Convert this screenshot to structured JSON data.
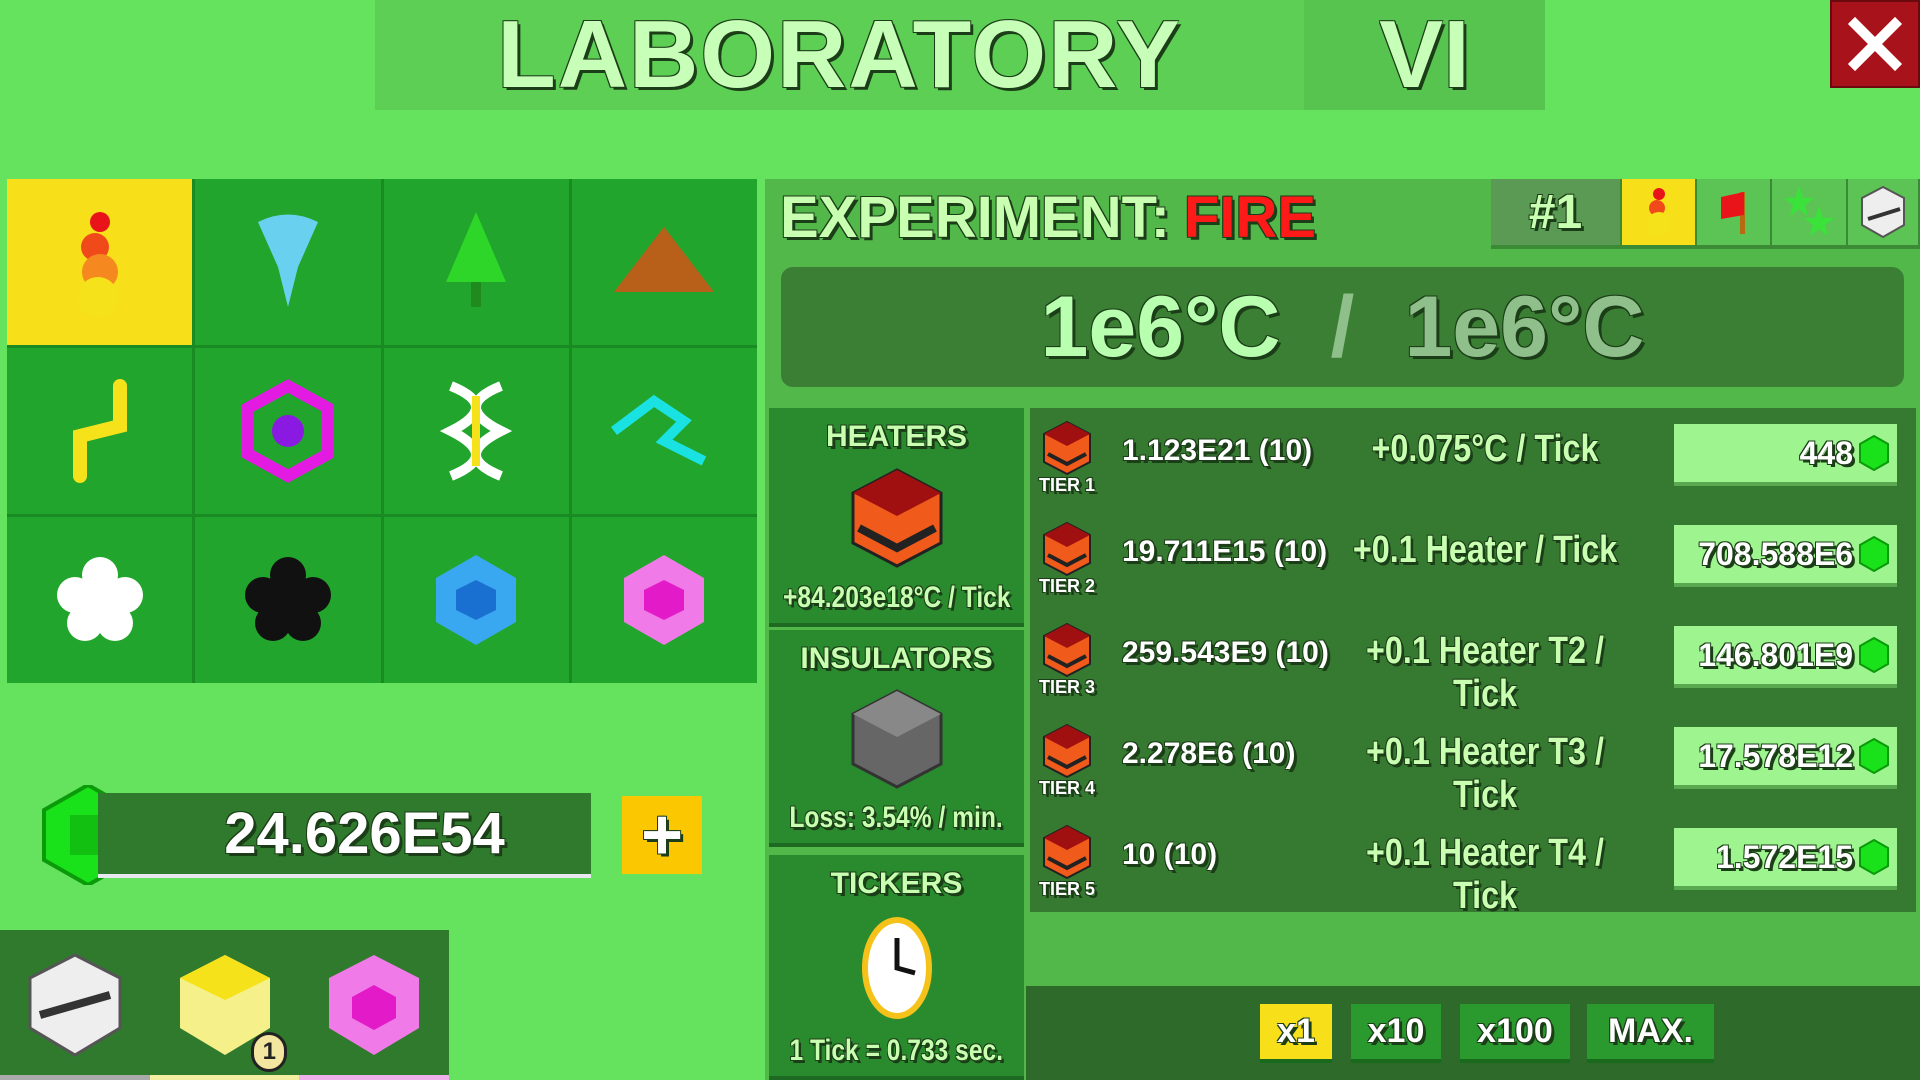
{
  "header": {
    "title": "LABORATORY",
    "tier": "VI",
    "close_icon": "close-icon"
  },
  "experiments": [
    {
      "name": "fire",
      "icon": "fire-icon",
      "selected": true
    },
    {
      "name": "water",
      "icon": "water-drop-icon"
    },
    {
      "name": "tree",
      "icon": "tree-icon"
    },
    {
      "name": "earth",
      "icon": "dirt-pile-icon"
    },
    {
      "name": "lightning",
      "icon": "lightning-icon"
    },
    {
      "name": "magic",
      "icon": "purple-ring-icon"
    },
    {
      "name": "dna",
      "icon": "dna-icon"
    },
    {
      "name": "wind",
      "icon": "cyan-swirl-icon"
    },
    {
      "name": "light",
      "icon": "white-flower-icon"
    },
    {
      "name": "dark",
      "icon": "black-flower-icon"
    },
    {
      "name": "ice",
      "icon": "blue-hex-icon"
    },
    {
      "name": "pink",
      "icon": "pink-hex-icon"
    }
  ],
  "currency": {
    "amount": "24.626E54",
    "add_label": "+"
  },
  "tray": {
    "badge": "1"
  },
  "experiment": {
    "label": "EXPERIMENT:",
    "name": "FIRE",
    "number": "#1"
  },
  "temperature": {
    "current": "1e6°C",
    "separator": "/",
    "target": "1e6°C"
  },
  "categories": {
    "heaters": {
      "title": "HEATERS",
      "footer": "+84.203e18°C / Tick"
    },
    "insulators": {
      "title": "INSULATORS",
      "footer": "Loss: 3.54% / min."
    },
    "tickers": {
      "title": "TICKERS",
      "footer": "1 Tick = 0.733 sec."
    }
  },
  "heaters": [
    {
      "tier": "TIER 1",
      "owned": "1.123E21 (10)",
      "effect": "+0.075°C / Tick",
      "cost": "448"
    },
    {
      "tier": "TIER 2",
      "owned": "19.711E15 (10)",
      "effect": "+0.1 Heater / Tick",
      "cost": "708.588E6"
    },
    {
      "tier": "TIER 3",
      "owned": "259.543E9 (10)",
      "effect": "+0.1 Heater T2 / Tick",
      "cost": "146.801E9"
    },
    {
      "tier": "TIER 4",
      "owned": "2.278E6 (10)",
      "effect": "+0.1 Heater T3 / Tick",
      "cost": "17.578E12"
    },
    {
      "tier": "TIER 5",
      "owned": "10 (10)",
      "effect": "+0.1 Heater T4 / Tick",
      "cost": "1.572E15"
    }
  ],
  "multipliers": [
    {
      "label": "x1",
      "selected": true
    },
    {
      "label": "x10"
    },
    {
      "label": "x100"
    },
    {
      "label": "MAX."
    }
  ],
  "colors": {
    "background": "#66e35e",
    "selected": "#f7e01a",
    "fire": "#ff1a1a",
    "close": "#a8121a"
  }
}
